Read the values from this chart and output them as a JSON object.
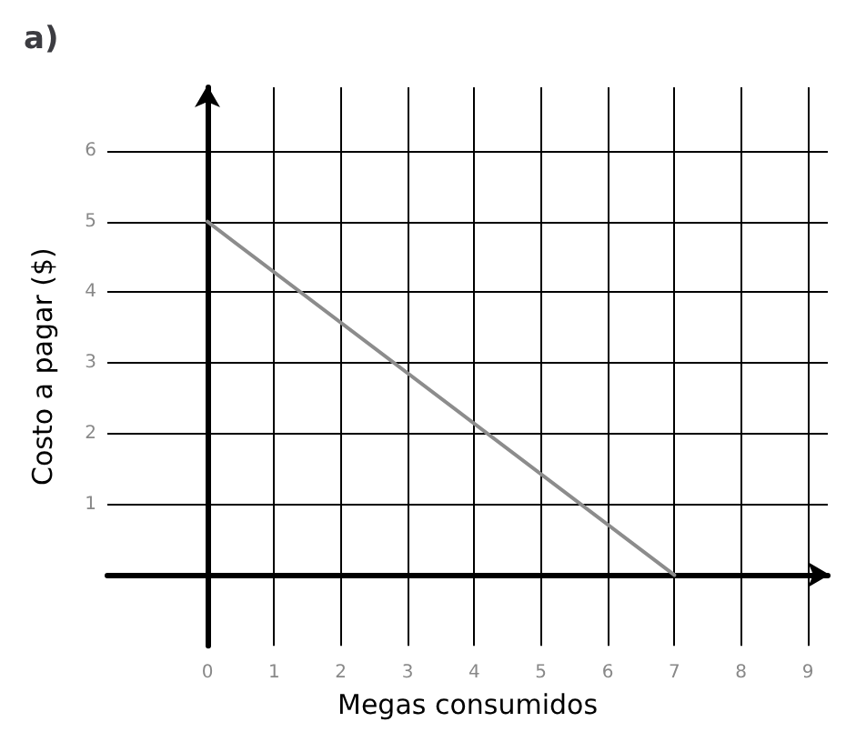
{
  "chart_data": {
    "type": "line",
    "title": "a)",
    "xlabel": "Megas consumidos",
    "ylabel": "Costo a pagar ($)",
    "x": [
      0,
      7
    ],
    "series": [
      {
        "color": "#8c8c8c",
        "values": [
          5,
          0
        ]
      }
    ],
    "xlim": [
      -1.5,
      9.3
    ],
    "ylim": [
      -1,
      6.9
    ],
    "xticks": [
      0,
      1,
      2,
      3,
      4,
      5,
      6,
      7,
      8,
      9
    ],
    "yticks": [
      1,
      2,
      3,
      4,
      5,
      6
    ],
    "grid": true,
    "marker": "none",
    "line_style": "solid"
  }
}
